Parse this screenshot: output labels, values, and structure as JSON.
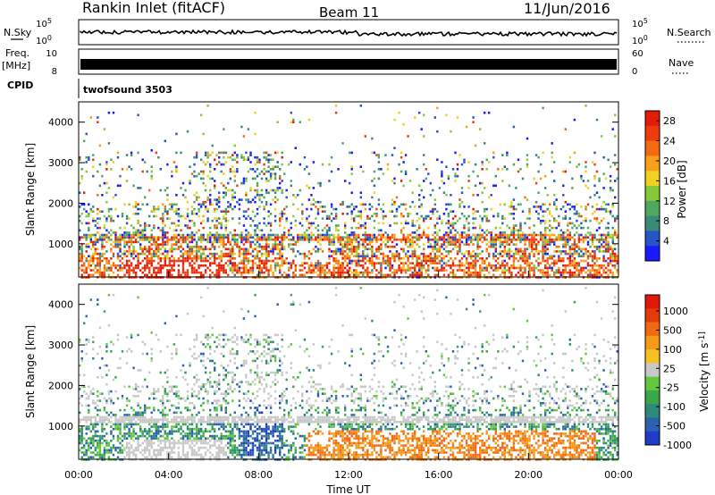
{
  "header": {
    "station": "Rankin Inlet (fitACF)",
    "beam": "Beam 11",
    "date": "11/Jun/2016"
  },
  "status_panels": {
    "nsky": {
      "label": "N.Sky",
      "tick_top": "10^5",
      "tick_bottom": "10^0"
    },
    "nsearch": {
      "label": "N.Search",
      "tick_top": "10^5",
      "tick_bottom": "10^0",
      "legend_style": "dotted"
    },
    "freq": {
      "label_line1": "Freq.",
      "label_line2": "[MHz]",
      "tick_top": "10",
      "tick_bottom": "8"
    },
    "nave": {
      "label": "Nave",
      "tick_top": "60",
      "tick_bottom": "0",
      "legend_style": "dotted"
    },
    "cpid": {
      "label": "CPID",
      "value": "twofsound 3503"
    }
  },
  "chart_data": [
    {
      "type": "heatmap",
      "ylabel": "Slant Range [km]",
      "xlabel": "Time UT",
      "x_ticks": [
        "00:00",
        "04:00",
        "08:00",
        "12:00",
        "16:00",
        "20:00",
        "00:00"
      ],
      "x_range_hours": [
        0,
        24
      ],
      "y_ticks": [
        1000,
        2000,
        3000,
        4000
      ],
      "y_range_km": [
        180,
        4500
      ],
      "colorbar": {
        "label": "Power [dB]",
        "ticks": [
          4,
          8,
          12,
          16,
          20,
          24,
          28
        ],
        "range": [
          0,
          30
        ],
        "colors": [
          "#1a1aff",
          "#2456c8",
          "#3a8a7a",
          "#4fa860",
          "#86c83a",
          "#f0d020",
          "#f7a018",
          "#f36a12",
          "#ee3a0c",
          "#e51a08"
        ]
      }
    },
    {
      "type": "heatmap",
      "ylabel": "Slant Range [km]",
      "xlabel": "Time UT",
      "x_ticks": [
        "00:00",
        "04:00",
        "08:00",
        "12:00",
        "16:00",
        "20:00",
        "00:00"
      ],
      "x_range_hours": [
        0,
        24
      ],
      "y_ticks": [
        1000,
        2000,
        3000,
        4000
      ],
      "y_range_km": [
        180,
        4500
      ],
      "colorbar": {
        "label": "Velocity [m s^-1]",
        "ticks": [
          1000,
          500,
          100,
          25,
          -25,
          -100,
          -500,
          -1000
        ],
        "ground_scatter_color": "#c8c8c8",
        "colors": [
          "#1e3cc8",
          "#2a62b0",
          "#2e8a7a",
          "#3aa84a",
          "#60c83a",
          "#c8c8c8",
          "#f5c020",
          "#f59a18",
          "#f06a12",
          "#e53a0c",
          "#e01808"
        ]
      }
    }
  ]
}
